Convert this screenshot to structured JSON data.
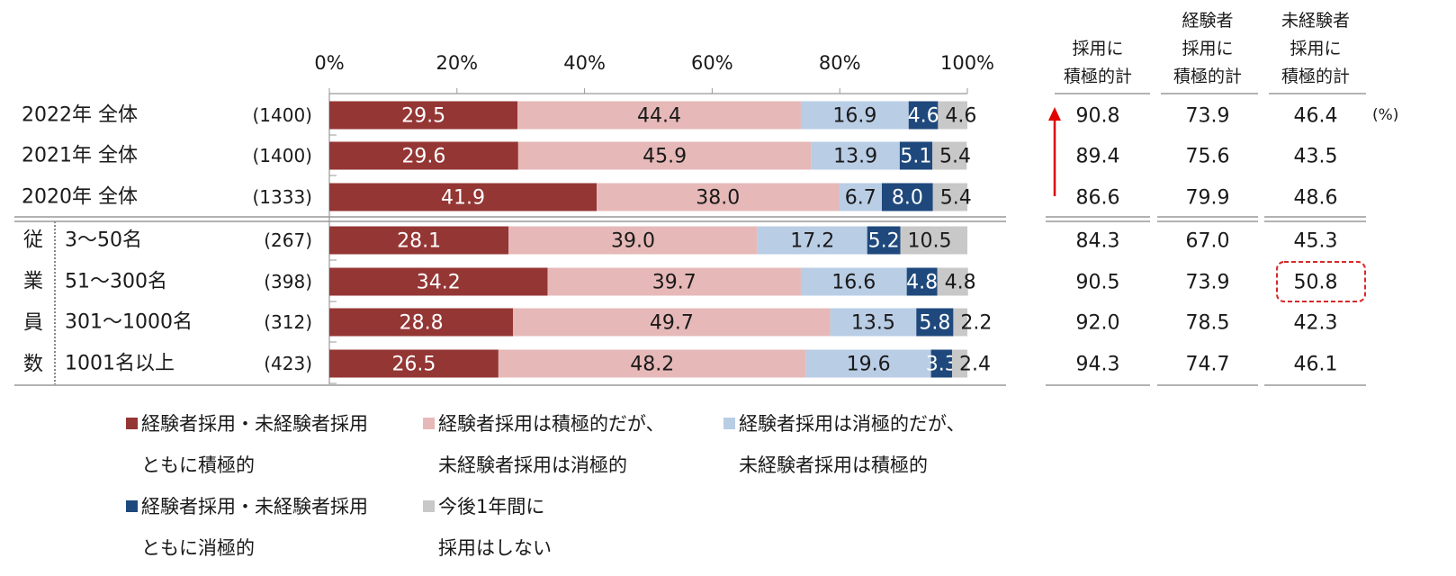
{
  "chart_data": {
    "type": "bar",
    "stacked": "percent",
    "orientation": "horizontal",
    "xlim": [
      0,
      100
    ],
    "x_ticks": [
      "0%",
      "20%",
      "40%",
      "60%",
      "80%",
      "100%"
    ],
    "group_label": [
      "従",
      "業",
      "員",
      "数"
    ],
    "categories": [
      "2022年 全体",
      "2021年 全体",
      "2020年 全体",
      "3～50名",
      "51～300名",
      "301～1000名",
      "1001名以上"
    ],
    "sample_sizes": [
      "(1400)",
      "(1400)",
      "(1333)",
      "(267)",
      "(398)",
      "(312)",
      "(423)"
    ],
    "series": [
      {
        "name": "経験者採用・未経験者採用ともに積極的",
        "legend_lines": [
          "経験者採用・未経験者採用",
          "ともに積極的"
        ],
        "color": "#943634",
        "label_color": "#ffffff",
        "values": [
          29.5,
          29.6,
          41.9,
          28.1,
          34.2,
          28.8,
          26.5
        ]
      },
      {
        "name": "経験者採用は積極的だが、未経験者採用は消極的",
        "legend_lines": [
          "経験者採用は積極的だが、",
          "未経験者採用は消極的"
        ],
        "color": "#e6b9b8",
        "label_color": "#1a1a1a",
        "values": [
          44.4,
          45.9,
          38.0,
          39.0,
          39.7,
          49.7,
          48.2
        ]
      },
      {
        "name": "経験者採用は消極的だが、未経験者採用は積極的",
        "legend_lines": [
          "経験者採用は消極的だが、",
          "未経験者採用は積極的"
        ],
        "color": "#b9cde5",
        "label_color": "#1a1a1a",
        "values": [
          16.9,
          13.9,
          6.7,
          17.2,
          16.6,
          13.5,
          19.6
        ]
      },
      {
        "name": "経験者採用・未経験者採用ともに消極的",
        "legend_lines": [
          "経験者採用・未経験者採用",
          "ともに消極的"
        ],
        "color": "#1f497d",
        "label_color": "#ffffff",
        "values": [
          4.6,
          5.1,
          8.0,
          5.2,
          4.8,
          5.8,
          3.3
        ]
      },
      {
        "name": "今後1年間に採用はしない",
        "legend_lines": [
          "今後1年間に",
          "採用はしない"
        ],
        "color": "#c8c8c8",
        "label_color": "#1a1a1a",
        "values": [
          4.6,
          5.4,
          5.4,
          10.5,
          4.8,
          2.2,
          2.4
        ]
      }
    ],
    "table": {
      "unit": "(%)",
      "columns": [
        {
          "header_lines": [
            "採用に",
            "積極的計"
          ],
          "values": [
            "90.8",
            "89.4",
            "86.6",
            "84.3",
            "90.5",
            "92.0",
            "94.3"
          ]
        },
        {
          "header_lines": [
            "経験者",
            "採用に",
            "積極的計"
          ],
          "values": [
            "73.9",
            "75.6",
            "79.9",
            "67.0",
            "73.9",
            "78.5",
            "74.7"
          ]
        },
        {
          "header_lines": [
            "未経験者",
            "採用に",
            "積極的計"
          ],
          "values": [
            "46.4",
            "43.5",
            "48.6",
            "45.3",
            "50.8",
            "42.3",
            "46.1"
          ]
        }
      ],
      "highlight": {
        "column": 2,
        "row": 4,
        "color": "#d62828"
      },
      "trend_arrow_color": "#e00000"
    }
  }
}
